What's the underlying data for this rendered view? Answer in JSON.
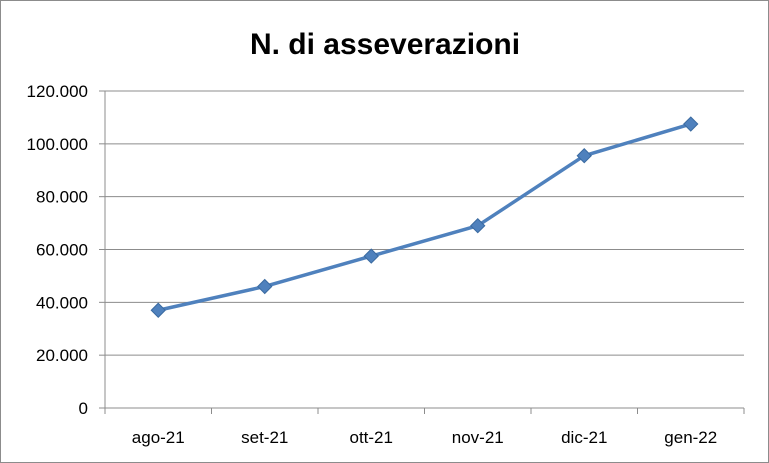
{
  "chart_data": {
    "type": "line",
    "title": "N. di asseverazioni",
    "xlabel": "",
    "ylabel": "",
    "categories": [
      "ago-21",
      "set-21",
      "ott-21",
      "nov-21",
      "dic-21",
      "gen-22"
    ],
    "series": [
      {
        "values": [
          37000,
          46000,
          57500,
          69000,
          95500,
          107500
        ],
        "color": "#4f81bd",
        "marker": "diamond"
      }
    ],
    "ylim": [
      0,
      120000
    ],
    "yticks": [
      0,
      20000,
      40000,
      60000,
      80000,
      100000,
      120000
    ],
    "ytick_labels": [
      "0",
      "20.000",
      "40.000",
      "60.000",
      "80.000",
      "100.000",
      "120.000"
    ],
    "grid": true,
    "legend": "none"
  }
}
